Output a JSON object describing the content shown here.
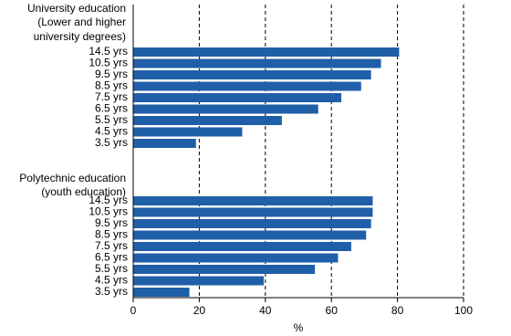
{
  "chart_data": {
    "type": "bar",
    "orientation": "horizontal",
    "color": "#1f5fa8",
    "xlabel": "%",
    "xlim": [
      0,
      100
    ],
    "xticks": [
      0,
      20,
      40,
      60,
      80,
      100
    ],
    "grid": true,
    "groups": [
      {
        "title": [
          "University education",
          "(Lower and higher",
          "university degrees)"
        ],
        "categories": [
          "14.5 yrs",
          "10.5 yrs",
          "9.5 yrs",
          "8.5 yrs",
          "7.5 yrs",
          "6.5 yrs",
          "5.5 yrs",
          "4.5 yrs",
          "3.5 yrs"
        ],
        "values": [
          80.5,
          75,
          72,
          69,
          63,
          56,
          45,
          33,
          19
        ]
      },
      {
        "title": [
          "Polytechnic education",
          "(youth education)"
        ],
        "categories": [
          "14.5 yrs",
          "10.5 yrs",
          "9.5 yrs",
          "8.5 yrs",
          "7.5 yrs",
          "6.5 yrs",
          "5.5 yrs",
          "4.5 yrs",
          "3.5 yrs"
        ],
        "values": [
          72.5,
          72.5,
          72,
          70.5,
          66,
          62,
          55,
          39.5,
          17
        ]
      }
    ]
  }
}
